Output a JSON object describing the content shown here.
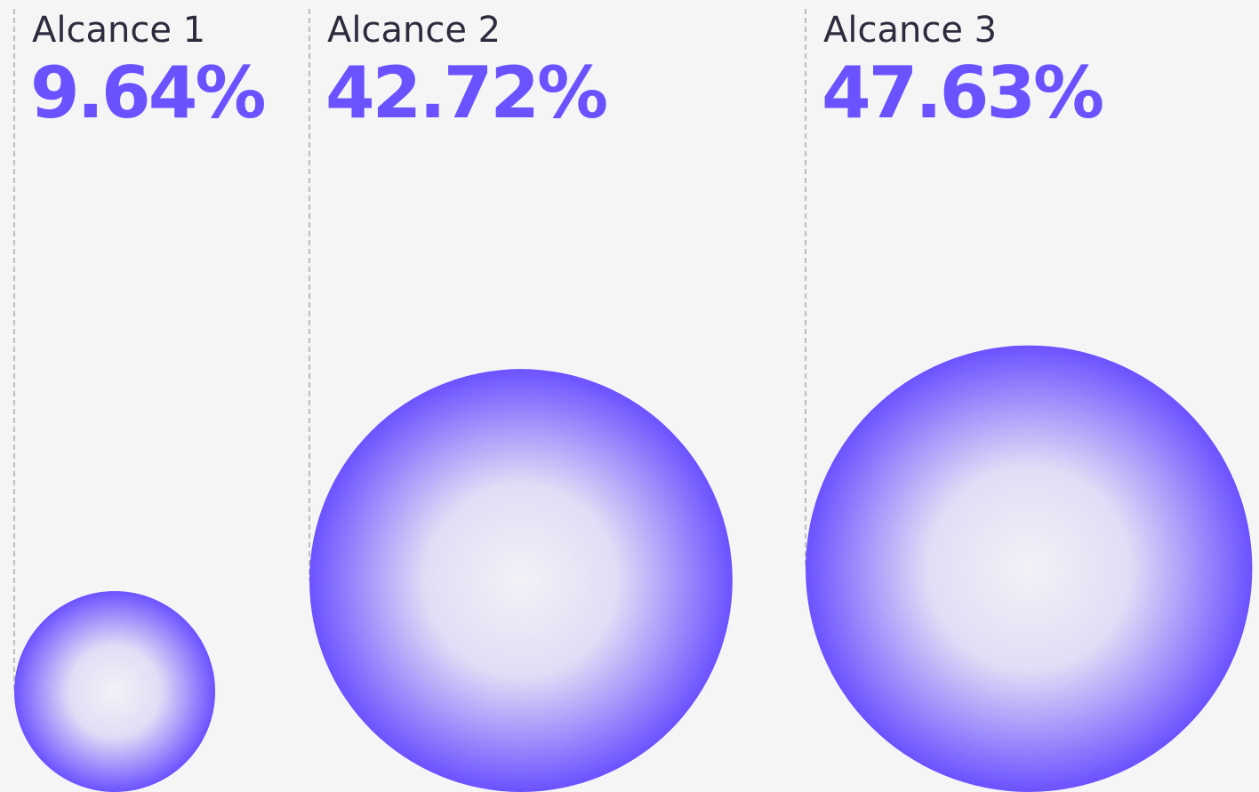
{
  "chart_data": {
    "type": "bubble",
    "categories": [
      "Alcance 1",
      "Alcance 2",
      "Alcance 3"
    ],
    "values": [
      9.64,
      42.72,
      47.63
    ],
    "value_labels": [
      "9.64%",
      "42.72%",
      "47.63%"
    ],
    "color": "#6b52ff"
  }
}
